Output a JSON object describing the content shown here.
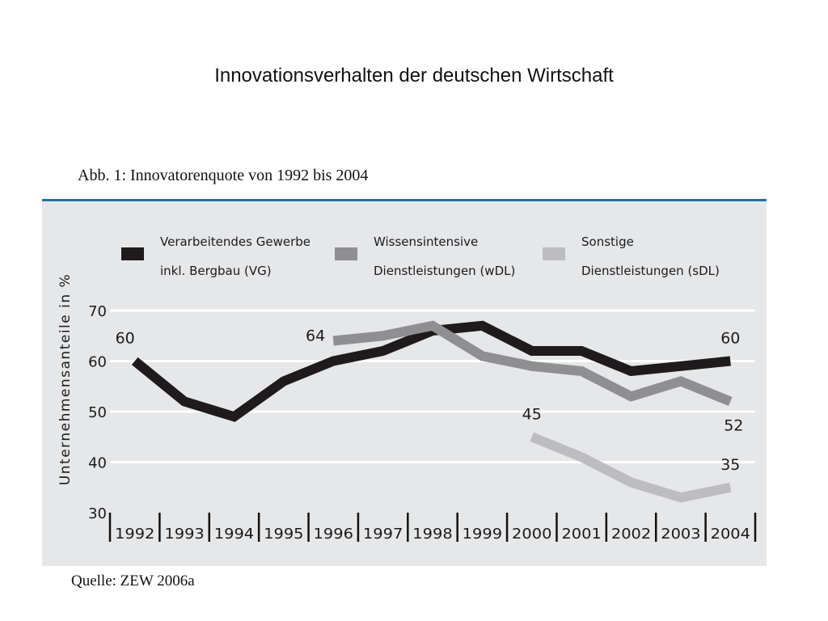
{
  "slide": {
    "title": "Innovationsverhalten der deutschen Wirtschaft",
    "caption": "Abb. 1: Innovatorenquote von 1992 bis 2004",
    "source": "Quelle: ZEW 2006a"
  },
  "chart_data": {
    "type": "line",
    "ylabel": "Unternehmensanteile in %",
    "xlabel": "",
    "ylim": [
      30,
      70
    ],
    "yticks": [
      30,
      40,
      50,
      60,
      70
    ],
    "grid": true,
    "legend_position": "top",
    "categories": [
      "1992",
      "1993",
      "1994",
      "1995",
      "1996",
      "1997",
      "1998",
      "1999",
      "2000",
      "2001",
      "2002",
      "2003",
      "2004"
    ],
    "series": [
      {
        "name_line1": "Verarbeitendes Gewerbe",
        "name_line2": "inkl. Bergbau (VG)",
        "color": "#1f1a1b",
        "values": [
          60,
          52,
          49,
          56,
          60,
          62,
          66,
          67,
          62,
          62,
          58,
          59,
          60
        ],
        "labels": [
          {
            "index": 0,
            "text": "60",
            "position": "above"
          },
          {
            "index": 12,
            "text": "60",
            "position": "above"
          }
        ]
      },
      {
        "name_line1": "Wissensintensive",
        "name_line2": "Dienstleistungen (wDL)",
        "color": "#8f8f91",
        "values": [
          null,
          null,
          null,
          null,
          64,
          65,
          67,
          61,
          59,
          58,
          53,
          56,
          52
        ],
        "labels": [
          {
            "index": 4,
            "text": "64",
            "position": "left"
          },
          {
            "index": 12,
            "text": "52",
            "position": "below"
          }
        ]
      },
      {
        "name_line1": "Sonstige",
        "name_line2": "Dienstleistungen (sDL)",
        "color": "#bdbdbf",
        "values": [
          null,
          null,
          null,
          null,
          null,
          null,
          null,
          null,
          45,
          41,
          36,
          33,
          35
        ],
        "labels": [
          {
            "index": 8,
            "text": "45",
            "position": "above"
          },
          {
            "index": 12,
            "text": "35",
            "position": "above"
          }
        ]
      }
    ]
  }
}
